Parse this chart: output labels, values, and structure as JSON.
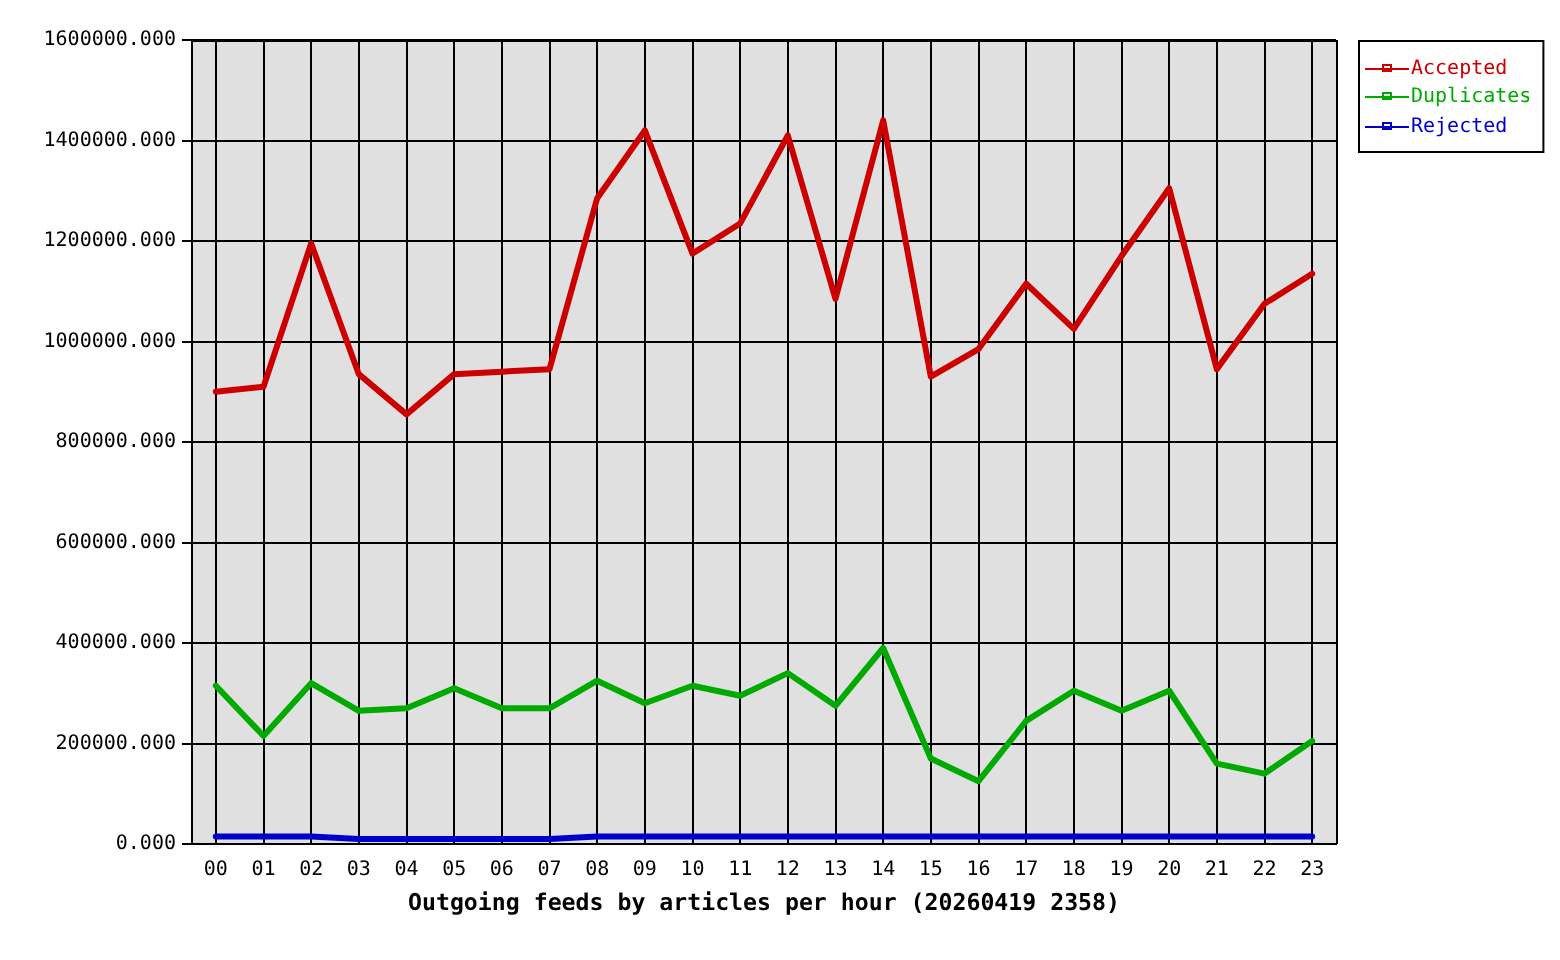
{
  "chart_data": {
    "type": "line",
    "xlabel": "Outgoing feeds by articles per hour (20260419 2358)",
    "categories": [
      "00",
      "01",
      "02",
      "03",
      "04",
      "05",
      "06",
      "07",
      "08",
      "09",
      "10",
      "11",
      "12",
      "13",
      "14",
      "15",
      "16",
      "17",
      "18",
      "19",
      "20",
      "21",
      "22",
      "23"
    ],
    "series": [
      {
        "name": "Accepted",
        "color": "#cc0000",
        "values": [
          900000,
          910000,
          1195000,
          935000,
          855000,
          935000,
          940000,
          945000,
          1285000,
          1420000,
          1175000,
          1235000,
          1410000,
          1085000,
          1440000,
          930000,
          985000,
          1115000,
          1025000,
          1170000,
          1305000,
          945000,
          1075000,
          1135000
        ]
      },
      {
        "name": "Duplicates",
        "color": "#00aa00",
        "values": [
          315000,
          215000,
          320000,
          265000,
          270000,
          310000,
          270000,
          270000,
          325000,
          280000,
          315000,
          295000,
          340000,
          275000,
          390000,
          170000,
          125000,
          245000,
          305000,
          265000,
          305000,
          160000,
          140000,
          205000
        ]
      },
      {
        "name": "Rejected",
        "color": "#0000cc",
        "values": [
          15000,
          15000,
          15000,
          10000,
          10000,
          10000,
          10000,
          10000,
          15000,
          15000,
          15000,
          15000,
          15000,
          15000,
          15000,
          15000,
          15000,
          15000,
          15000,
          15000,
          15000,
          15000,
          15000,
          15000
        ]
      }
    ],
    "ylim": [
      0,
      1600000
    ],
    "yticks": [
      {
        "value": 0,
        "label": "0.000"
      },
      {
        "value": 200000,
        "label": "200000.000"
      },
      {
        "value": 400000,
        "label": "400000.000"
      },
      {
        "value": 600000,
        "label": "600000.000"
      },
      {
        "value": 800000,
        "label": "800000.000"
      },
      {
        "value": 1000000,
        "label": "1000000.000"
      },
      {
        "value": 1200000,
        "label": "1200000.000"
      },
      {
        "value": 1400000,
        "label": "1400000.000"
      },
      {
        "value": 1600000,
        "label": "1600000.000"
      }
    ],
    "grid": true,
    "legend": "top right"
  }
}
